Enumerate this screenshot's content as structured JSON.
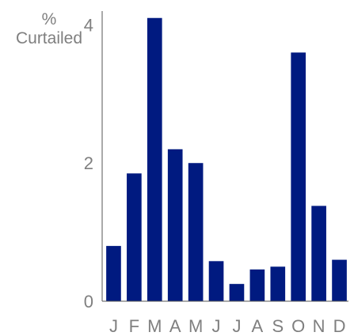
{
  "chart_data": {
    "type": "bar",
    "title": "",
    "xlabel": "",
    "ylabel_lines": [
      "%",
      "Curtailed"
    ],
    "categories": [
      "J",
      "F",
      "M",
      "A",
      "M",
      "J",
      "J",
      "A",
      "S",
      "O",
      "N",
      "D"
    ],
    "values": [
      0.8,
      1.85,
      4.1,
      2.2,
      2.0,
      0.58,
      0.25,
      0.46,
      0.5,
      3.6,
      1.38,
      0.6
    ],
    "ylim": [
      0,
      4.2
    ],
    "yticks": [
      0,
      2,
      4
    ],
    "grid": false,
    "legend": "none",
    "bar_color": "#001a80",
    "axis_color": "#555555",
    "text_color": "#7f7f7f"
  }
}
